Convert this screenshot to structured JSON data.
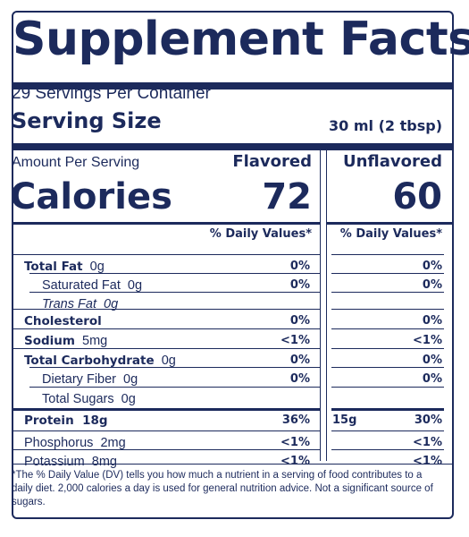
{
  "title": "Supplement Facts",
  "servings_per_container": "29 Servings Per Container",
  "serving_size": {
    "label": "Serving Size",
    "value": "30 ml (2 tbsp)"
  },
  "amount_per_serving": "Amount Per Serving",
  "columns": {
    "flavored": "Flavored",
    "unflavored": "Unflavored"
  },
  "calories": {
    "label": "Calories",
    "flavored": "72",
    "unflavored": "60"
  },
  "dv_header": "% Daily Values*",
  "nutrients": [
    {
      "name": "Total Fat",
      "amount": "0g",
      "flavored_dv": "0%",
      "unflavored_dv": "0%"
    },
    {
      "name": "Saturated Fat",
      "amount": "0g",
      "flavored_dv": "0%",
      "unflavored_dv": "0%"
    },
    {
      "name": "Trans Fat",
      "amount": "0g",
      "flavored_dv": "",
      "unflavored_dv": ""
    },
    {
      "name": "Cholesterol",
      "amount": "",
      "flavored_dv": "0%",
      "unflavored_dv": "0%"
    },
    {
      "name": "Sodium",
      "amount": "5mg",
      "flavored_dv": "<1%",
      "unflavored_dv": "<1%"
    },
    {
      "name": "Total Carbohydrate",
      "amount": "0g",
      "flavored_dv": "0%",
      "unflavored_dv": "0%"
    },
    {
      "name": "Dietary Fiber",
      "amount": "0g",
      "flavored_dv": "0%",
      "unflavored_dv": "0%"
    },
    {
      "name": "Total Sugars",
      "amount": "0g",
      "flavored_dv": "",
      "unflavored_dv": ""
    },
    {
      "name": "Protein",
      "amount": "18g",
      "flavored_dv": "36%",
      "unflavored_amount": "15g",
      "unflavored_dv": "30%"
    },
    {
      "name": "Phosphorus",
      "amount": "2mg",
      "flavored_dv": "<1%",
      "unflavored_dv": "<1%"
    },
    {
      "name": "Potassium",
      "amount": "8mg",
      "flavored_dv": "<1%",
      "unflavored_dv": "<1%"
    }
  ],
  "footnote": "*The % Daily Value (DV) tells you how much a nutrient in a serving of food contributes to a daily diet. 2,000 calories a day is used for general nutrition advice. Not a significant source of sugars."
}
